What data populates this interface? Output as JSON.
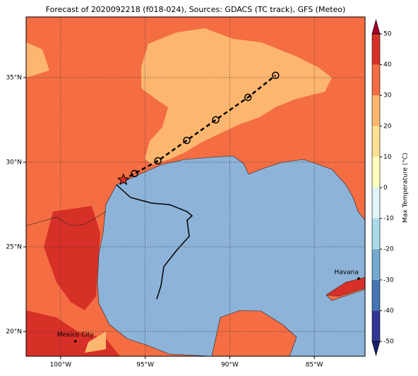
{
  "map": {
    "title": "Forecast of 2020092218 (f018-024), Sources: GDACS (TC track), GFS (Meteo)",
    "xlim": [
      -102.04,
      -82
    ],
    "ylim": [
      18.54,
      38.58
    ],
    "xticks": [
      {
        "value": -100,
        "label": "100°W"
      },
      {
        "value": -95,
        "label": "95°W"
      },
      {
        "value": -90,
        "label": "90°W"
      },
      {
        "value": -85,
        "label": "85°W"
      }
    ],
    "yticks": [
      {
        "value": 20,
        "label": "20°N"
      },
      {
        "value": 25,
        "label": "25°N"
      },
      {
        "value": 30,
        "label": "30°N"
      },
      {
        "value": 35,
        "label": "35°N"
      }
    ],
    "grid": true,
    "cities": [
      {
        "name": "Mexico City",
        "lon": -99.13,
        "lat": 19.43
      },
      {
        "name": "Havana",
        "lon": -82.38,
        "lat": 23.13
      }
    ],
    "track": {
      "lon": [
        -96.29,
        -95.63,
        -94.25,
        -92.54,
        -90.83,
        -88.92,
        -87.29
      ],
      "lat": [
        28.96,
        29.33,
        30.08,
        31.29,
        32.5,
        33.83,
        35.13
      ]
    },
    "colorbar": {
      "label": "Max Temperature (°C)",
      "ticks": [
        -50,
        -40,
        -30,
        -20,
        -10,
        0,
        10,
        20,
        30,
        40,
        50
      ],
      "colors": [
        "#313695",
        "#4575b4",
        "#74a9cf",
        "#abd9e9",
        "#e0f3f8",
        "#ffffbf",
        "#fee090",
        "#fdb66f",
        "#f46d43",
        "#d73027"
      ],
      "under_color": "#1a1f6e",
      "over_color": "#a50026"
    }
  }
}
